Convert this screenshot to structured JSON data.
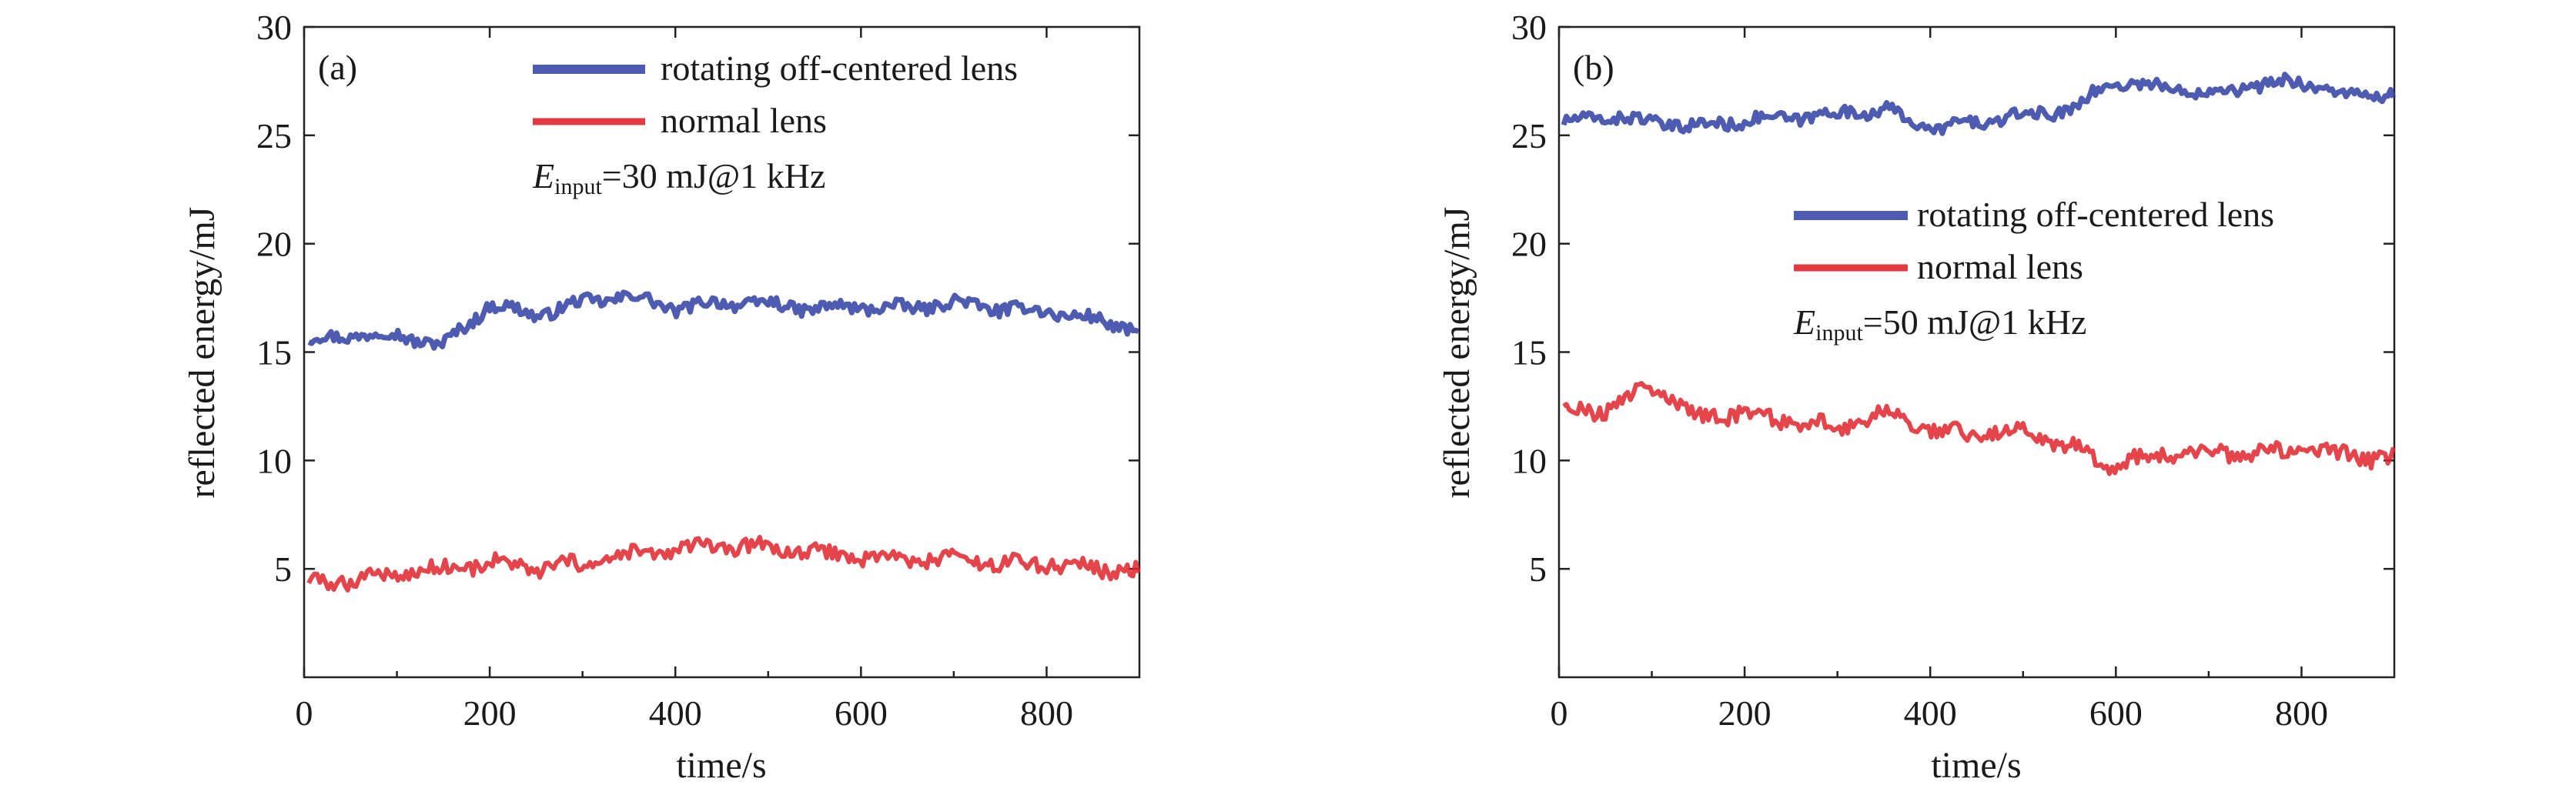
{
  "chart_data": [
    {
      "type": "line",
      "panel_label": "(a)",
      "xlabel": "time/s",
      "ylabel": "reflected energy/mJ",
      "xlim": [
        0,
        900
      ],
      "ylim": [
        0,
        30
      ],
      "x_ticks": [
        0,
        200,
        400,
        600,
        800
      ],
      "y_ticks": [
        5,
        10,
        15,
        20,
        25,
        30
      ],
      "legend_position": "top-right",
      "annotation": {
        "symbol": "E",
        "subscript": "input",
        "text": "=30 mJ@1 kHz"
      },
      "series": [
        {
          "name": "rotating off-centered lens",
          "color": "#2e3fa3",
          "x": [
            0,
            50,
            100,
            150,
            200,
            250,
            300,
            350,
            400,
            450,
            500,
            550,
            600,
            650,
            700,
            750,
            800,
            850,
            900
          ],
          "values": [
            15.5,
            15.8,
            15.8,
            15.3,
            17.2,
            16.7,
            17.3,
            17.6,
            17.0,
            17.3,
            17.2,
            17.0,
            17.1,
            17.0,
            17.3,
            17.0,
            16.9,
            16.5,
            16.0
          ]
        },
        {
          "name": "normal lens",
          "color": "#e0232b",
          "x": [
            0,
            50,
            100,
            150,
            200,
            250,
            300,
            350,
            400,
            450,
            500,
            550,
            600,
            650,
            700,
            750,
            800,
            850,
            900
          ],
          "values": [
            4.3,
            4.5,
            4.8,
            5.0,
            5.3,
            5.0,
            5.2,
            5.6,
            5.9,
            6.0,
            6.0,
            5.7,
            5.6,
            5.4,
            5.5,
            5.2,
            5.3,
            5.0,
            4.9
          ]
        }
      ]
    },
    {
      "type": "line",
      "panel_label": "(b)",
      "xlabel": "time/s",
      "ylabel": "reflected energy/mJ",
      "xlim": [
        0,
        900
      ],
      "ylim": [
        0,
        30
      ],
      "x_ticks": [
        0,
        200,
        400,
        600,
        800
      ],
      "y_ticks": [
        5,
        10,
        15,
        20,
        25,
        30
      ],
      "legend_position": "center-right",
      "annotation": {
        "symbol": "E",
        "subscript": "input",
        "text": "=50 mJ@1 kHz"
      },
      "series": [
        {
          "name": "rotating off-centered lens",
          "color": "#2e3fa3",
          "x": [
            0,
            50,
            100,
            150,
            200,
            250,
            300,
            350,
            400,
            450,
            500,
            550,
            600,
            650,
            700,
            750,
            800,
            850,
            900
          ],
          "values": [
            25.5,
            25.9,
            25.6,
            25.4,
            25.7,
            25.8,
            26.0,
            26.2,
            25.3,
            25.6,
            25.9,
            26.2,
            27.5,
            27.2,
            27.0,
            27.3,
            27.5,
            26.8,
            26.9
          ]
        },
        {
          "name": "normal lens",
          "color": "#e0232b",
          "x": [
            0,
            50,
            100,
            150,
            200,
            250,
            300,
            350,
            400,
            450,
            500,
            550,
            600,
            650,
            700,
            750,
            800,
            850,
            900
          ],
          "values": [
            12.5,
            12.3,
            13.5,
            12.0,
            12.2,
            11.8,
            11.5,
            12.2,
            11.4,
            11.2,
            11.4,
            10.6,
            9.8,
            10.3,
            10.4,
            10.3,
            10.5,
            10.2,
            10.1
          ]
        }
      ]
    }
  ]
}
